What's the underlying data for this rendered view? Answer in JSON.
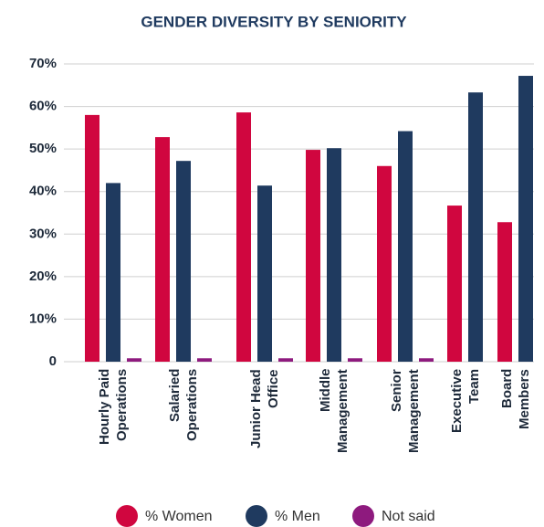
{
  "chart_data": {
    "type": "bar",
    "title": "GENDER DIVERSITY BY SENIORITY",
    "categories": [
      "Hourly Paid\nOperations",
      "Salaried\nOperations",
      "Junior Head\nOffice",
      "Middle\nManagement",
      "Senior\nManagement",
      "Executive\nTeam",
      "Board\nMembers"
    ],
    "series": [
      {
        "name": "% Women",
        "color": "#d0063f",
        "values": [
          58,
          52.8,
          58.6,
          49.8,
          46,
          36.7,
          32.8
        ]
      },
      {
        "name": "% Men",
        "color": "#1f3a5f",
        "values": [
          42,
          47.2,
          41.4,
          50.2,
          54.2,
          63.3,
          67.2
        ]
      },
      {
        "name": "Not said",
        "color": "#8e1a7e",
        "values": [
          0.8,
          0.8,
          0.8,
          0.8,
          0.8,
          null,
          null
        ]
      }
    ],
    "ylim": [
      0,
      70
    ],
    "yticks": [
      0,
      {
        "value": 10,
        "label": "10%"
      },
      {
        "value": 20,
        "label": "20%"
      },
      {
        "value": 30,
        "label": "30%"
      },
      {
        "value": 40,
        "label": "40%"
      },
      {
        "value": 50,
        "label": "50%"
      },
      {
        "value": 60,
        "label": "60%"
      },
      {
        "value": 70,
        "label": "70%"
      }
    ],
    "grid": true,
    "legend": "bottom"
  }
}
